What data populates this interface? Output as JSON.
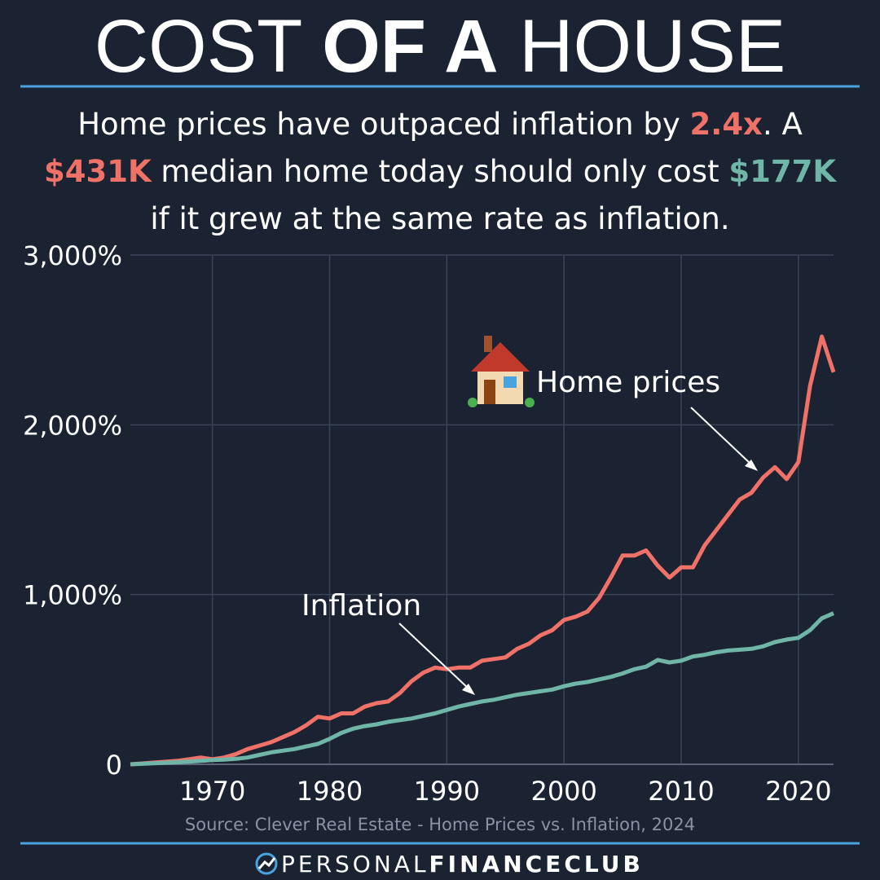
{
  "chart_data": {
    "type": "line",
    "title": {
      "light_start": "COST",
      "bold": "OF A",
      "light_end": "HOUSE"
    },
    "subtitle": [
      {
        "text": "Home prices have outpaced inflation by ",
        "color": "#ffffff"
      },
      {
        "text": "2.4x",
        "color": "#f07167"
      },
      {
        "text": ". A ",
        "color": "#ffffff"
      },
      {
        "text": "$431K",
        "color": "#f07167"
      },
      {
        "text": " median home today should only cost ",
        "color": "#ffffff"
      },
      {
        "text": "$177K",
        "color": "#6fb5a8"
      },
      {
        "text": " if it grew at the same rate as inflation.",
        "color": "#ffffff"
      }
    ],
    "x": [
      1963,
      1964,
      1965,
      1966,
      1967,
      1968,
      1969,
      1970,
      1971,
      1972,
      1973,
      1974,
      1975,
      1976,
      1977,
      1978,
      1979,
      1980,
      1981,
      1982,
      1983,
      1984,
      1985,
      1986,
      1987,
      1988,
      1989,
      1990,
      1991,
      1992,
      1993,
      1994,
      1995,
      1996,
      1997,
      1998,
      1999,
      2000,
      2001,
      2002,
      2003,
      2004,
      2005,
      2006,
      2007,
      2008,
      2009,
      2010,
      2011,
      2012,
      2013,
      2014,
      2015,
      2016,
      2017,
      2018,
      2019,
      2020,
      2021,
      2022,
      2023
    ],
    "series": [
      {
        "name": "Home prices",
        "color": "#f07167",
        "values": [
          0,
          5,
          10,
          15,
          20,
          30,
          40,
          30,
          40,
          60,
          90,
          110,
          130,
          160,
          190,
          230,
          280,
          270,
          300,
          300,
          340,
          360,
          370,
          420,
          490,
          540,
          570,
          560,
          570,
          570,
          610,
          620,
          630,
          680,
          710,
          760,
          790,
          850,
          870,
          900,
          980,
          1100,
          1230,
          1230,
          1260,
          1170,
          1100,
          1160,
          1160,
          1290,
          1380,
          1470,
          1560,
          1600,
          1690,
          1750,
          1680,
          1780,
          2230,
          2520,
          2310
        ]
      },
      {
        "name": "Inflation",
        "color": "#6fb5a8",
        "values": [
          0,
          3,
          6,
          9,
          12,
          16,
          20,
          25,
          28,
          32,
          40,
          55,
          70,
          80,
          90,
          105,
          120,
          150,
          185,
          210,
          225,
          235,
          250,
          260,
          270,
          285,
          300,
          320,
          340,
          355,
          370,
          380,
          395,
          410,
          420,
          430,
          440,
          460,
          475,
          485,
          500,
          515,
          535,
          560,
          575,
          615,
          600,
          610,
          635,
          645,
          660,
          670,
          675,
          680,
          695,
          720,
          735,
          745,
          790,
          860,
          890
        ]
      }
    ],
    "xlim": [
      1963,
      2023
    ],
    "xticks": [
      1970,
      1980,
      1990,
      2000,
      2010,
      2020
    ],
    "ylim": [
      0,
      3000
    ],
    "yticks": [
      0,
      {
        "value": 1000,
        "label": "1,000%"
      },
      {
        "value": 2000,
        "label": "2,000%"
      },
      {
        "value": 3000,
        "label": "3,000%"
      }
    ],
    "grid": true,
    "source": "Source: Clever Real Estate - Home Prices vs. Inflation, 2024",
    "footer": {
      "light_start": "PERSONAL",
      "bold_mid": "FINANCE",
      "bold_end": "CLUB"
    }
  }
}
